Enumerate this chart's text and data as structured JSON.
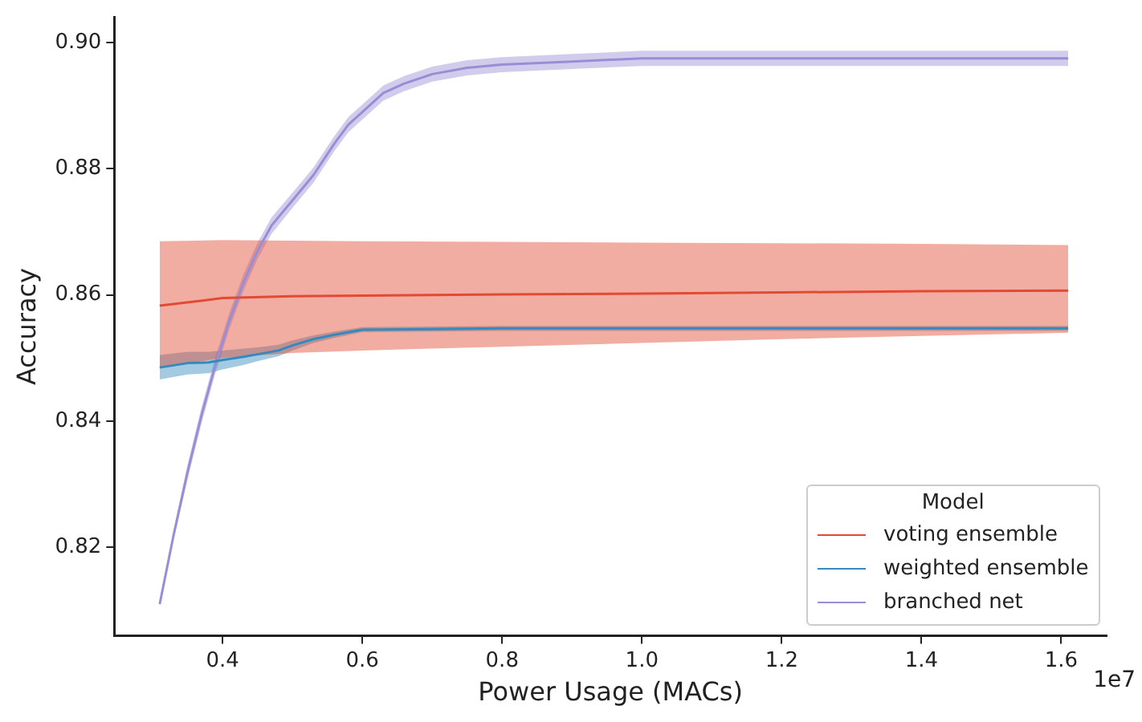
{
  "chart_data": {
    "type": "line",
    "xlabel": "Power Usage (MACs)",
    "ylabel": "Accuracy",
    "legend_title": "Model",
    "annotations": [
      "1e7"
    ],
    "xlim": [
      0.245,
      1.665
    ],
    "ylim": [
      0.806,
      0.904
    ],
    "xticks": [
      0.4,
      0.6,
      0.8,
      {
        "value": 1,
        "label": "1.0"
      },
      1.2,
      1.4,
      1.6
    ],
    "yticks": [
      0.82,
      0.84,
      0.86,
      0.88,
      {
        "value": 0.9,
        "label": "0.90"
      }
    ],
    "grid": false,
    "legend": "bottom right",
    "marker": "none",
    "line_style": "solid",
    "series": [
      {
        "name": "voting ensemble",
        "color": "#e24a33",
        "x": [
          0.31,
          0.4,
          0.5,
          0.6,
          0.8,
          1.0,
          1.2,
          1.4,
          1.61
        ],
        "values": [
          0.8583,
          0.8595,
          0.8598,
          0.8599,
          0.8601,
          0.8602,
          0.8604,
          0.8606,
          0.8607
        ],
        "lower": [
          0.8485,
          0.85,
          0.8508,
          0.8512,
          0.8518,
          0.8524,
          0.853,
          0.8535,
          0.854
        ],
        "upper": [
          0.8685,
          0.8687,
          0.8686,
          0.8685,
          0.8684,
          0.8683,
          0.8682,
          0.8681,
          0.8679
        ]
      },
      {
        "name": "weighted ensemble",
        "color": "#348abd",
        "x": [
          0.31,
          0.35,
          0.38,
          0.4,
          0.43,
          0.45,
          0.48,
          0.5,
          0.53,
          0.56,
          0.6,
          0.7,
          0.8,
          1.0,
          1.2,
          1.4,
          1.61
        ],
        "values": [
          0.8485,
          0.8492,
          0.8493,
          0.8497,
          0.8502,
          0.8506,
          0.8512,
          0.852,
          0.853,
          0.8537,
          0.8545,
          0.8546,
          0.8547,
          0.8547,
          0.8547,
          0.8547,
          0.8547
        ],
        "lower": [
          0.8466,
          0.8474,
          0.8476,
          0.8482,
          0.8489,
          0.8495,
          0.8503,
          0.8512,
          0.8524,
          0.8532,
          0.8541,
          0.8542,
          0.8543,
          0.8543,
          0.8543,
          0.8543,
          0.8543
        ],
        "upper": [
          0.8505,
          0.851,
          0.851,
          0.8512,
          0.8515,
          0.8517,
          0.8521,
          0.8528,
          0.8536,
          0.8542,
          0.8549,
          0.855,
          0.8551,
          0.8551,
          0.8551,
          0.8551,
          0.8551
        ]
      },
      {
        "name": "branched net",
        "color": "#988ed5",
        "x": [
          0.31,
          0.33,
          0.35,
          0.37,
          0.39,
          0.41,
          0.43,
          0.45,
          0.47,
          0.5,
          0.53,
          0.56,
          0.58,
          0.6,
          0.63,
          0.66,
          0.7,
          0.75,
          0.8,
          0.9,
          1.0,
          1.2,
          1.4,
          1.61
        ],
        "values": [
          0.811,
          0.822,
          0.832,
          0.841,
          0.849,
          0.856,
          0.862,
          0.867,
          0.871,
          0.875,
          0.879,
          0.884,
          0.887,
          0.889,
          0.892,
          0.8935,
          0.895,
          0.896,
          0.8965,
          0.897,
          0.8975,
          0.8975,
          0.8975,
          0.8975
        ],
        "lower": [
          0.8105,
          0.8212,
          0.8308,
          0.8397,
          0.8477,
          0.8547,
          0.8607,
          0.8657,
          0.8697,
          0.8738,
          0.8778,
          0.8828,
          0.8858,
          0.8878,
          0.8908,
          0.8923,
          0.8938,
          0.8948,
          0.8953,
          0.8958,
          0.8963,
          0.8963,
          0.8963,
          0.8963
        ],
        "upper": [
          0.8115,
          0.8228,
          0.8332,
          0.8423,
          0.8503,
          0.8573,
          0.8633,
          0.8683,
          0.8723,
          0.8762,
          0.8802,
          0.8852,
          0.8882,
          0.8902,
          0.8932,
          0.8947,
          0.8962,
          0.8972,
          0.8977,
          0.8982,
          0.8987,
          0.8987,
          0.8987,
          0.8987
        ]
      }
    ]
  }
}
